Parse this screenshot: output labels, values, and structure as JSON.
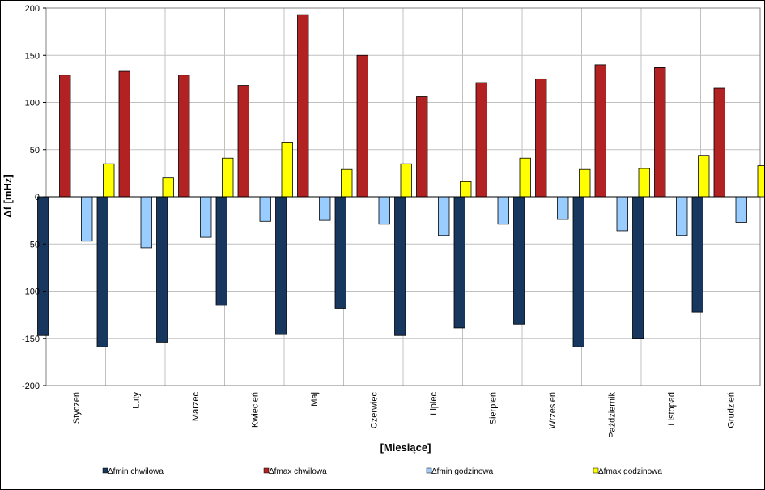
{
  "chart_data": {
    "type": "bar",
    "xlabel": "[Miesiące]",
    "ylabel": "Δf [mHz]",
    "ylim": [
      -200,
      200
    ],
    "yticks": [
      200,
      150,
      100,
      50,
      0,
      -50,
      -100,
      -150,
      -200
    ],
    "grid": true,
    "legend_position": "bottom",
    "categories": [
      "Styczeń",
      "Luty",
      "Marzec",
      "Kwiecień",
      "Maj",
      "Czerwiec",
      "Lipiec",
      "Sierpień",
      "Wrzesień",
      "Październik",
      "Listopad",
      "Grudzień"
    ],
    "series": [
      {
        "name": "Δfmin chwilowa",
        "color": "#17375e",
        "values": [
          -147,
          -159,
          -154,
          -115,
          -146,
          -118,
          -147,
          -139,
          -135,
          -159,
          -150,
          -122
        ]
      },
      {
        "name": "Δfmax chwilowa",
        "color": "#b22222",
        "values": [
          129,
          133,
          129,
          118,
          193,
          150,
          106,
          121,
          125,
          140,
          137,
          115
        ]
      },
      {
        "name": "Δfmin godzinowa",
        "color": "#99ccff",
        "values": [
          -47,
          -54,
          -43,
          -26,
          -25,
          -29,
          -41,
          -29,
          -24,
          -36,
          -41,
          -27
        ]
      },
      {
        "name": "Δfmax godzinowa",
        "color": "#ffff00",
        "values": [
          35,
          20,
          41,
          58,
          29,
          35,
          16,
          41,
          29,
          30,
          44,
          33
        ]
      }
    ]
  }
}
